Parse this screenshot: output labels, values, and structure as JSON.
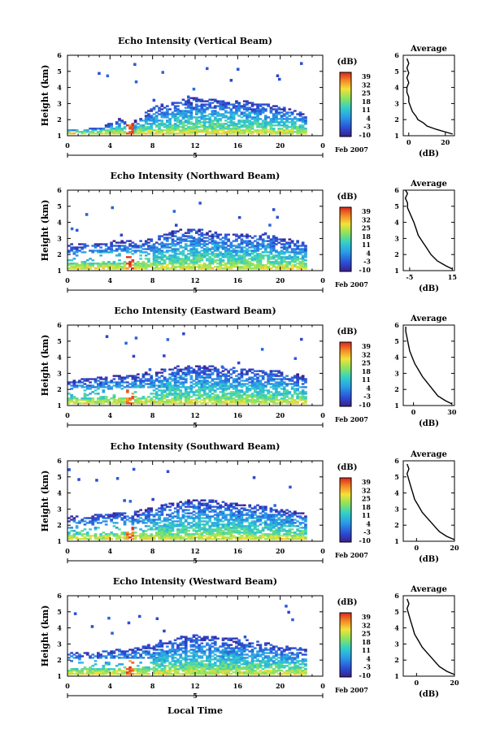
{
  "figure": {
    "xlabel": "Local Time",
    "x_ticks": [
      "0",
      "4",
      "8",
      "12",
      "16",
      "20",
      "0"
    ],
    "day_label": "5",
    "date_label": "Feb 2007",
    "colorbar_title": "(dB)",
    "colorbar_ticks": [
      "39",
      "32",
      "25",
      "18",
      "11",
      "4",
      "-3",
      "-10"
    ]
  },
  "chart_data": [
    {
      "type": "heatmap",
      "title": "Echo Intensity (Vertical Beam)",
      "ylabel": "Height (km)",
      "xlim": [
        0,
        24
      ],
      "ylim": [
        1,
        6
      ],
      "y_ticks": [
        "1",
        "2",
        "3",
        "4",
        "5",
        "6"
      ],
      "colorscale_range": [
        -10,
        39
      ],
      "avg_title": "Average",
      "avg_xlabel": "(dB)",
      "avg_x_ticks": [
        "0",
        "20"
      ],
      "avg_xlim": [
        -3,
        25
      ],
      "avg_profile": [
        [
          24,
          1.1
        ],
        [
          21,
          1.2
        ],
        [
          15,
          1.4
        ],
        [
          10,
          1.6
        ],
        [
          8,
          1.8
        ],
        [
          5,
          2.0
        ],
        [
          4,
          2.2
        ],
        [
          2,
          2.5
        ],
        [
          1,
          2.8
        ],
        [
          0,
          3.1
        ],
        [
          0,
          3.4
        ],
        [
          -1,
          3.7
        ],
        [
          -1,
          4.0
        ],
        [
          0,
          4.3
        ],
        [
          -1,
          4.6
        ],
        [
          0,
          4.9
        ],
        [
          -1,
          5.2
        ],
        [
          0,
          5.5
        ],
        [
          -1,
          5.8
        ]
      ],
      "cloud_top": [
        [
          0,
          1.4
        ],
        [
          1.5,
          1.4
        ],
        [
          3,
          1.5
        ],
        [
          5,
          2.1
        ],
        [
          6,
          1.8
        ],
        [
          8,
          2.8
        ],
        [
          10,
          3.1
        ],
        [
          12,
          3.4
        ],
        [
          14,
          3.2
        ],
        [
          16,
          3.2
        ],
        [
          18,
          3.0
        ],
        [
          20,
          2.8
        ],
        [
          21,
          2.6
        ],
        [
          22,
          2.4
        ],
        [
          22.5,
          2.3
        ]
      ],
      "peak_hour": 5.8
    },
    {
      "type": "heatmap",
      "title": "Echo Intensity (Northward Beam)",
      "ylabel": "Height (km)",
      "xlim": [
        0,
        24
      ],
      "ylim": [
        1,
        6
      ],
      "y_ticks": [
        "1",
        "2",
        "3",
        "4",
        "5",
        "6"
      ],
      "colorscale_range": [
        -10,
        39
      ],
      "avg_title": "Average",
      "avg_xlabel": "(dB)",
      "avg_x_ticks": [
        "-5",
        "15"
      ],
      "avg_xlim": [
        -8,
        16
      ],
      "avg_profile": [
        [
          15,
          1.1
        ],
        [
          12,
          1.3
        ],
        [
          8,
          1.6
        ],
        [
          5,
          2.0
        ],
        [
          3,
          2.4
        ],
        [
          1,
          2.8
        ],
        [
          -1,
          3.2
        ],
        [
          -2,
          3.6
        ],
        [
          -3,
          4.0
        ],
        [
          -4,
          4.3
        ],
        [
          -5,
          4.6
        ],
        [
          -6,
          4.9
        ],
        [
          -6,
          5.2
        ],
        [
          -7,
          5.5
        ],
        [
          -6,
          5.8
        ],
        [
          -7,
          6.0
        ]
      ],
      "cloud_top": [
        [
          0,
          2.6
        ],
        [
          3,
          2.7
        ],
        [
          5,
          2.9
        ],
        [
          6,
          2.8
        ],
        [
          8,
          3.0
        ],
        [
          10,
          3.5
        ],
        [
          12,
          3.6
        ],
        [
          14,
          3.3
        ],
        [
          16,
          3.2
        ],
        [
          18,
          3.3
        ],
        [
          20,
          3.0
        ],
        [
          22,
          2.8
        ],
        [
          22.5,
          2.7
        ]
      ],
      "peak_hour": 5.8
    },
    {
      "type": "heatmap",
      "title": "Echo Intensity (Eastward Beam)",
      "ylabel": "Height (km)",
      "xlim": [
        0,
        24
      ],
      "ylim": [
        1,
        6
      ],
      "y_ticks": [
        "1",
        "2",
        "3",
        "4",
        "5",
        "6"
      ],
      "colorscale_range": [
        -10,
        39
      ],
      "avg_title": "Average",
      "avg_xlabel": "(dB)",
      "avg_x_ticks": [
        "0",
        "30"
      ],
      "avg_xlim": [
        -8,
        32
      ],
      "avg_profile": [
        [
          30,
          1.1
        ],
        [
          25,
          1.3
        ],
        [
          19,
          1.6
        ],
        [
          15,
          2.0
        ],
        [
          11,
          2.4
        ],
        [
          7,
          2.8
        ],
        [
          4,
          3.2
        ],
        [
          1,
          3.6
        ],
        [
          -1,
          4.0
        ],
        [
          -3,
          4.4
        ],
        [
          -4,
          4.8
        ],
        [
          -5,
          5.2
        ],
        [
          -6,
          5.6
        ],
        [
          -6,
          5.9
        ]
      ],
      "cloud_top": [
        [
          0,
          2.5
        ],
        [
          2,
          2.7
        ],
        [
          4,
          2.8
        ],
        [
          6,
          2.9
        ],
        [
          8,
          3.1
        ],
        [
          10,
          3.4
        ],
        [
          12,
          3.5
        ],
        [
          14,
          3.4
        ],
        [
          16,
          3.3
        ],
        [
          18,
          3.2
        ],
        [
          20,
          3.1
        ],
        [
          22,
          2.9
        ],
        [
          22.5,
          2.6
        ]
      ],
      "peak_hour": 5.8
    },
    {
      "type": "heatmap",
      "title": "Echo Intensity (Southward Beam)",
      "ylabel": "Height (km)",
      "xlim": [
        0,
        24
      ],
      "ylim": [
        1,
        6
      ],
      "y_ticks": [
        "1",
        "2",
        "3",
        "4",
        "5",
        "6"
      ],
      "colorscale_range": [
        -10,
        39
      ],
      "avg_title": "Average",
      "avg_xlabel": "(dB)",
      "avg_x_ticks": [
        "0",
        "20"
      ],
      "avg_xlim": [
        -7,
        20
      ],
      "avg_profile": [
        [
          20,
          1.1
        ],
        [
          16,
          1.3
        ],
        [
          12,
          1.6
        ],
        [
          9,
          2.0
        ],
        [
          6,
          2.4
        ],
        [
          3,
          2.8
        ],
        [
          1,
          3.2
        ],
        [
          -1,
          3.6
        ],
        [
          -2,
          4.0
        ],
        [
          -3,
          4.4
        ],
        [
          -4,
          4.8
        ],
        [
          -5,
          5.2
        ],
        [
          -4,
          5.5
        ],
        [
          -5,
          5.8
        ]
      ],
      "cloud_top": [
        [
          0,
          2.5
        ],
        [
          2,
          2.6
        ],
        [
          4,
          2.7
        ],
        [
          6,
          2.8
        ],
        [
          8,
          3.1
        ],
        [
          10,
          3.4
        ],
        [
          12,
          3.6
        ],
        [
          14,
          3.5
        ],
        [
          16,
          3.3
        ],
        [
          18,
          3.2
        ],
        [
          20,
          3.0
        ],
        [
          22,
          2.8
        ],
        [
          22.5,
          2.6
        ]
      ],
      "peak_hour": 5.8
    },
    {
      "type": "heatmap",
      "title": "Echo Intensity (Westward Beam)",
      "ylabel": "Height (km)",
      "xlim": [
        0,
        24
      ],
      "ylim": [
        1,
        6
      ],
      "y_ticks": [
        "1",
        "2",
        "3",
        "4",
        "5",
        "6"
      ],
      "colorscale_range": [
        -10,
        39
      ],
      "avg_title": "Average",
      "avg_xlabel": "(dB)",
      "avg_x_ticks": [
        "0",
        "20"
      ],
      "avg_xlim": [
        -7,
        20
      ],
      "avg_profile": [
        [
          20,
          1.1
        ],
        [
          16,
          1.3
        ],
        [
          12,
          1.6
        ],
        [
          9,
          2.0
        ],
        [
          6,
          2.4
        ],
        [
          3,
          2.8
        ],
        [
          1,
          3.2
        ],
        [
          -1,
          3.6
        ],
        [
          -2,
          4.0
        ],
        [
          -3,
          4.4
        ],
        [
          -4,
          4.8
        ],
        [
          -5,
          5.2
        ],
        [
          -4,
          5.5
        ],
        [
          -5,
          5.8
        ]
      ],
      "cloud_top": [
        [
          0,
          2.5
        ],
        [
          2,
          2.4
        ],
        [
          4,
          2.6
        ],
        [
          6,
          2.7
        ],
        [
          8,
          3.0
        ],
        [
          10,
          3.3
        ],
        [
          12,
          3.6
        ],
        [
          14,
          3.4
        ],
        [
          16,
          3.3
        ],
        [
          18,
          3.1
        ],
        [
          20,
          2.9
        ],
        [
          22,
          2.7
        ],
        [
          22.5,
          2.6
        ]
      ],
      "peak_hour": 5.8
    }
  ]
}
